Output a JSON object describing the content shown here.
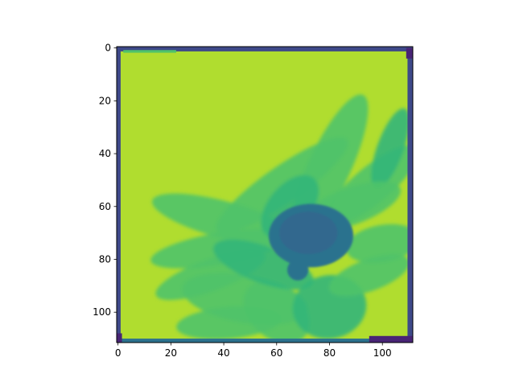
{
  "chart_data": {
    "type": "heatmap",
    "title": "",
    "xlabel": "",
    "ylabel": "",
    "image_shape": [
      112,
      112
    ],
    "xlim": [
      -0.5,
      111.5
    ],
    "ylim": [
      111.5,
      -0.5
    ],
    "y_axis_inverted": true,
    "x_ticks": [
      0,
      20,
      40,
      60,
      80,
      100
    ],
    "y_ticks": [
      0,
      20,
      40,
      60,
      80,
      100
    ],
    "x_tick_labels": [
      "0",
      "20",
      "40",
      "60",
      "80",
      "100"
    ],
    "y_tick_labels": [
      "0",
      "20",
      "40",
      "60",
      "80",
      "100"
    ],
    "colormap": "viridis",
    "colormap_stops": [
      "#440154",
      "#3b528b",
      "#21918c",
      "#5ec962",
      "#fde725"
    ],
    "colors": {
      "background": "#b0dd2f",
      "petals": "#4fc369",
      "petals_dark": "#34b679",
      "center": "#2c728e",
      "center_dark": "#31688e",
      "edge_dark": "#3e4989",
      "edge_purple": "#482475"
    },
    "grid": false,
    "legend": "none",
    "content": "Grayscale image of a flower rendered with the viridis colormap: dark teal-blue flower center at about (73, 70), green-teal petals radiating across the lower-right area, bright yellow-green background, and a dark irregular border around the image edges."
  }
}
